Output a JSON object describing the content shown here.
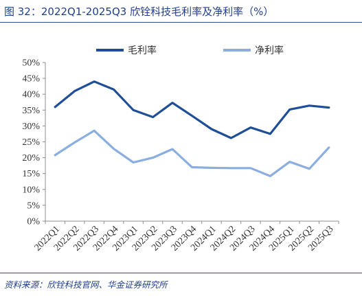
{
  "title": "图 32：2022Q1-2025Q3 欣铨科技毛利率及净利率（%）",
  "source": "资料来源：欣铨科技官网、华金证券研究所",
  "chart_data": {
    "type": "line",
    "categories": [
      "2022Q1",
      "2022Q2",
      "2022Q3",
      "2022Q4",
      "2023Q1",
      "2023Q2",
      "2023Q3",
      "2023Q4",
      "2024Q1",
      "2024Q2",
      "2024Q3",
      "2024Q4",
      "2025Q1",
      "2025Q2",
      "2025Q3"
    ],
    "series": [
      {
        "name": "毛利率",
        "color": "#1f4e99",
        "values": [
          36.0,
          41.0,
          44.0,
          41.5,
          35.0,
          32.8,
          37.3,
          33.2,
          29.0,
          26.2,
          29.5,
          27.5,
          35.2,
          36.4,
          35.8
        ]
      },
      {
        "name": "净利率",
        "color": "#8aaee0",
        "values": [
          20.8,
          24.8,
          28.5,
          22.8,
          18.5,
          20.0,
          22.7,
          17.0,
          16.8,
          16.7,
          16.7,
          14.2,
          18.7,
          16.5,
          23.2
        ]
      }
    ],
    "ylim": [
      0,
      50
    ],
    "yticks": [
      "0%",
      "5%",
      "10%",
      "15%",
      "20%",
      "25%",
      "30%",
      "35%",
      "40%",
      "45%",
      "50%"
    ],
    "legend": "top",
    "grid": false
  }
}
